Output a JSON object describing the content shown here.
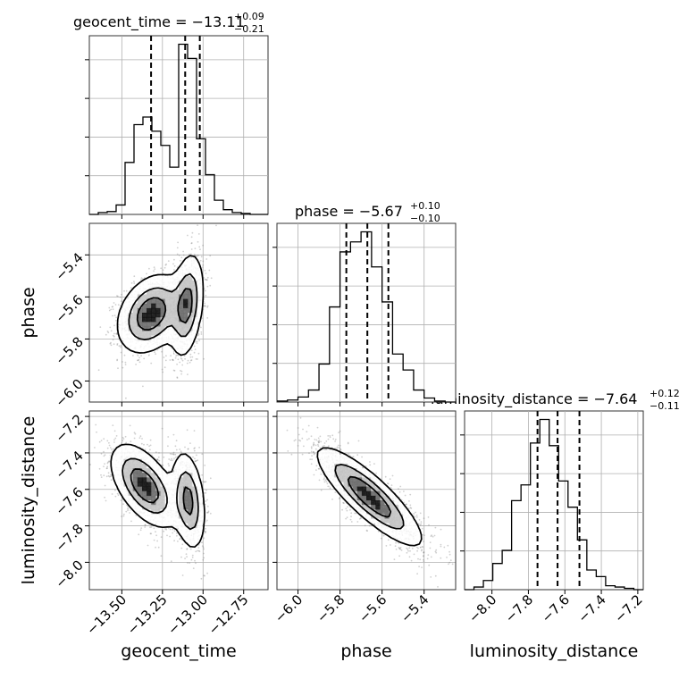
{
  "chart_data": {
    "type": "corner",
    "parameters": [
      "geocent_time",
      "phase",
      "luminosity_distance"
    ],
    "ranges": {
      "geocent_time": [
        -13.7,
        -12.6
      ],
      "phase": [
        -6.1,
        -5.25
      ],
      "luminosity_distance": [
        -8.15,
        -7.17
      ]
    },
    "grid": true,
    "titles": [
      {
        "param": "geocent_time",
        "prefix": "geocent_time = ",
        "median": "−13.11",
        "plus": "+0.09",
        "minus": "−0.21"
      },
      {
        "param": "phase",
        "prefix": "phase = ",
        "median": "−5.67",
        "plus": "+0.10",
        "minus": "−0.10"
      },
      {
        "param": "luminosity_distance",
        "prefix": "luminosity_distance = ",
        "median": "−7.64",
        "plus": "+0.12",
        "minus": "−0.11"
      }
    ],
    "quantiles": {
      "geocent_time": [
        -13.32,
        -13.11,
        -13.02
      ],
      "phase": [
        -5.77,
        -5.67,
        -5.57
      ],
      "luminosity_distance": [
        -7.75,
        -7.64,
        -7.52
      ]
    },
    "ticks": {
      "geocent_time": {
        "values": [
          -13.5,
          -13.25,
          -13.0,
          -12.75
        ],
        "labels": [
          "−13.50",
          "−13.25",
          "−13.00",
          "−12.75"
        ]
      },
      "phase": {
        "values": [
          -6.0,
          -5.8,
          -5.6,
          -5.4
        ],
        "labels": [
          "−6.0",
          "−5.8",
          "−5.6",
          "−5.4"
        ]
      },
      "luminosity_distance": {
        "values": [
          -8.0,
          -7.8,
          -7.6,
          -7.4,
          -7.2
        ],
        "labels": [
          "−8.0",
          "−7.8",
          "−7.6",
          "−7.4",
          "−7.2"
        ]
      }
    },
    "histograms": {
      "geocent_time": {
        "edges_range": [
          -13.7,
          -12.6
        ],
        "counts": [
          0,
          2,
          3,
          10,
          55,
          95,
          103,
          88,
          73,
          50,
          180,
          165,
          80,
          42,
          15,
          5,
          2,
          1,
          0,
          0
        ]
      },
      "phase": {
        "edges_range": [
          -6.1,
          -5.25
        ],
        "counts": [
          1,
          2,
          5,
          12,
          38,
          95,
          150,
          160,
          170,
          135,
          100,
          48,
          32,
          12,
          4,
          1,
          0
        ]
      },
      "luminosity_distance": {
        "edges_range": [
          -8.15,
          -7.17
        ],
        "counts": [
          0,
          2,
          7,
          20,
          30,
          68,
          80,
          112,
          130,
          110,
          83,
          63,
          38,
          15,
          10,
          3,
          2,
          1,
          0
        ]
      }
    },
    "phase_vs_geocent": {
      "modes": [
        {
          "x": -13.32,
          "y": -5.68,
          "sx": 0.1,
          "sy": 0.09,
          "rho": 0.3,
          "w": 0.55
        },
        {
          "x": -13.1,
          "y": -5.64,
          "sx": 0.05,
          "sy": 0.12,
          "rho": 0.3,
          "w": 0.45
        }
      ],
      "contour_levels": [
        0.12,
        0.4,
        0.7
      ]
    },
    "lumdist_vs_geocent": {
      "modes": [
        {
          "x": -13.36,
          "y": -7.58,
          "sx": 0.1,
          "sy": 0.11,
          "rho": -0.55,
          "w": 0.55
        },
        {
          "x": -13.09,
          "y": -7.66,
          "sx": 0.05,
          "sy": 0.13,
          "rho": -0.3,
          "w": 0.45
        }
      ],
      "contour_levels": [
        0.12,
        0.4,
        0.7
      ]
    },
    "lumdist_vs_phase": {
      "modes": [
        {
          "x": -5.66,
          "y": -7.64,
          "sx": 0.12,
          "sy": 0.13,
          "rho": -0.85,
          "w": 1.0
        }
      ],
      "contour_levels": [
        0.12,
        0.4,
        0.7
      ]
    }
  }
}
